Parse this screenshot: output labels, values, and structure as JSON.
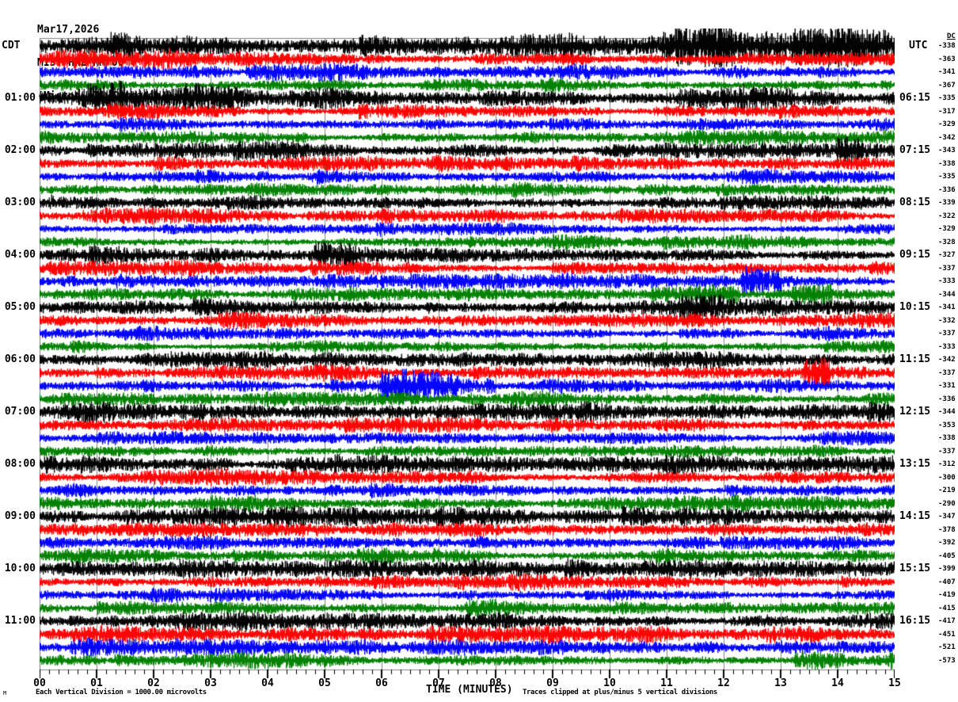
{
  "header": {
    "date": "Mar17,2026",
    "station": "MIST HHZ NM 00",
    "location": "(Miston, TN Cascadia)"
  },
  "axes": {
    "left_label": "CDT",
    "right_label": "UTC",
    "dc_label": "DC",
    "x_title": "TIME (MINUTES)"
  },
  "footer": {
    "left_note": "Each Vertical Division = 1000.00 microvolts",
    "right_note": "Traces clipped at plus/minus 5 vertical divisions",
    "watermark": "M"
  },
  "colors": {
    "black_trace": "#000000",
    "red_trace": "#ff0000",
    "blue_trace": "#0000ff",
    "green_trace": "#008000",
    "grid": "#808080",
    "tick": "#000000"
  },
  "chart_data": {
    "type": "line",
    "subtype": "helicorder-seismogram",
    "title": "MIST HHZ NM 00 (Miston, TN Cascadia) Mar17,2026",
    "x_axis": {
      "label": "TIME (MINUTES)",
      "min": 0,
      "max": 15,
      "tick_labels": [
        "00",
        "01",
        "02",
        "03",
        "04",
        "05",
        "06",
        "07",
        "08",
        "09",
        "10",
        "11",
        "12",
        "13",
        "14",
        "15"
      ],
      "minor_ticks_per_minute": 6
    },
    "row_duration_minutes": 15,
    "rows_per_hour": 4,
    "grid": "vertical gridlines at each minute",
    "note": "waveform is continuous microseismic noise; per-sample values not resolvable from image - rows listed with DC offset (microvolts), trace color, relative noise amplitude and visible event bursts (start/end minute, gain)",
    "rows": [
      {
        "cdt": "",
        "utc": "",
        "dc": -338,
        "color": "#000000",
        "amp": 6.2,
        "events": [
          {
            "s": 10.9,
            "e": 12.2,
            "g": 1.5
          },
          {
            "s": 13.2,
            "e": 14.9,
            "g": 1.35
          }
        ]
      },
      {
        "cdt": "",
        "utc": "",
        "dc": -363,
        "color": "#ff0000",
        "amp": 4.4,
        "events": []
      },
      {
        "cdt": "",
        "utc": "",
        "dc": -341,
        "color": "#0000ff",
        "amp": 3.6,
        "events": []
      },
      {
        "cdt": "",
        "utc": "",
        "dc": -367,
        "color": "#008000",
        "amp": 3.4,
        "events": []
      },
      {
        "cdt": "01:00",
        "utc": "06:15",
        "dc": -335,
        "color": "#000000",
        "amp": 5.2,
        "events": [
          {
            "s": 0.3,
            "e": 1.5,
            "g": 1.5
          },
          {
            "s": 2.5,
            "e": 3.7,
            "g": 1.45
          },
          {
            "s": 11.2,
            "e": 12.4,
            "g": 1.5
          }
        ]
      },
      {
        "cdt": "",
        "utc": "",
        "dc": -317,
        "color": "#ff0000",
        "amp": 3.4,
        "events": []
      },
      {
        "cdt": "",
        "utc": "",
        "dc": -329,
        "color": "#0000ff",
        "amp": 3.0,
        "events": []
      },
      {
        "cdt": "",
        "utc": "",
        "dc": -342,
        "color": "#008000",
        "amp": 3.2,
        "events": []
      },
      {
        "cdt": "02:00",
        "utc": "07:15",
        "dc": -343,
        "color": "#000000",
        "amp": 4.1,
        "events": [
          {
            "s": 13.1,
            "e": 14.4,
            "g": 1.4
          }
        ]
      },
      {
        "cdt": "",
        "utc": "",
        "dc": -338,
        "color": "#ff0000",
        "amp": 3.3,
        "events": []
      },
      {
        "cdt": "",
        "utc": "",
        "dc": -335,
        "color": "#0000ff",
        "amp": 3.0,
        "events": []
      },
      {
        "cdt": "",
        "utc": "",
        "dc": -336,
        "color": "#008000",
        "amp": 3.1,
        "events": []
      },
      {
        "cdt": "03:00",
        "utc": "08:15",
        "dc": -339,
        "color": "#000000",
        "amp": 3.9,
        "events": []
      },
      {
        "cdt": "",
        "utc": "",
        "dc": -322,
        "color": "#ff0000",
        "amp": 3.3,
        "events": []
      },
      {
        "cdt": "",
        "utc": "",
        "dc": -329,
        "color": "#0000ff",
        "amp": 2.9,
        "events": []
      },
      {
        "cdt": "",
        "utc": "",
        "dc": -328,
        "color": "#008000",
        "amp": 3.1,
        "events": []
      },
      {
        "cdt": "04:00",
        "utc": "09:15",
        "dc": -327,
        "color": "#000000",
        "amp": 3.9,
        "events": [
          {
            "s": 4.7,
            "e": 5.5,
            "g": 1.4
          }
        ]
      },
      {
        "cdt": "",
        "utc": "",
        "dc": -337,
        "color": "#ff0000",
        "amp": 3.3,
        "events": []
      },
      {
        "cdt": "",
        "utc": "",
        "dc": -333,
        "color": "#0000ff",
        "amp": 3.1,
        "events": [
          {
            "s": 12.3,
            "e": 13.0,
            "g": 2.0
          }
        ]
      },
      {
        "cdt": "",
        "utc": "",
        "dc": -344,
        "color": "#008000",
        "amp": 3.2,
        "events": [
          {
            "s": 10.7,
            "e": 12.3,
            "g": 2.1
          },
          {
            "s": 13.2,
            "e": 13.9,
            "g": 2.3
          }
        ]
      },
      {
        "cdt": "05:00",
        "utc": "10:15",
        "dc": -341,
        "color": "#000000",
        "amp": 4.0,
        "events": [
          {
            "s": 11.2,
            "e": 12.0,
            "g": 1.6
          }
        ]
      },
      {
        "cdt": "",
        "utc": "",
        "dc": -332,
        "color": "#ff0000",
        "amp": 3.4,
        "events": []
      },
      {
        "cdt": "",
        "utc": "",
        "dc": -337,
        "color": "#0000ff",
        "amp": 2.9,
        "events": []
      },
      {
        "cdt": "",
        "utc": "",
        "dc": -333,
        "color": "#008000",
        "amp": 3.1,
        "events": []
      },
      {
        "cdt": "06:00",
        "utc": "11:15",
        "dc": -342,
        "color": "#000000",
        "amp": 3.9,
        "events": []
      },
      {
        "cdt": "",
        "utc": "",
        "dc": -337,
        "color": "#ff0000",
        "amp": 3.4,
        "events": [
          {
            "s": 13.4,
            "e": 13.85,
            "g": 2.5
          }
        ]
      },
      {
        "cdt": "",
        "utc": "",
        "dc": -331,
        "color": "#0000ff",
        "amp": 3.1,
        "events": [
          {
            "s": 6.0,
            "e": 7.35,
            "g": 2.9
          },
          {
            "s": 7.35,
            "e": 8.0,
            "g": 1.9
          }
        ]
      },
      {
        "cdt": "",
        "utc": "",
        "dc": -336,
        "color": "#008000",
        "amp": 3.2,
        "events": []
      },
      {
        "cdt": "07:00",
        "utc": "12:15",
        "dc": -344,
        "color": "#000000",
        "amp": 4.0,
        "events": []
      },
      {
        "cdt": "",
        "utc": "",
        "dc": -353,
        "color": "#ff0000",
        "amp": 3.3,
        "events": []
      },
      {
        "cdt": "",
        "utc": "",
        "dc": -338,
        "color": "#0000ff",
        "amp": 2.9,
        "events": []
      },
      {
        "cdt": "",
        "utc": "",
        "dc": -337,
        "color": "#008000",
        "amp": 3.2,
        "events": []
      },
      {
        "cdt": "08:00",
        "utc": "13:15",
        "dc": -312,
        "color": "#000000",
        "amp": 3.9,
        "events": []
      },
      {
        "cdt": "",
        "utc": "",
        "dc": -300,
        "color": "#ff0000",
        "amp": 3.4,
        "events": []
      },
      {
        "cdt": "",
        "utc": "",
        "dc": -219,
        "color": "#0000ff",
        "amp": 3.0,
        "events": []
      },
      {
        "cdt": "",
        "utc": "",
        "dc": -290,
        "color": "#008000",
        "amp": 3.3,
        "events": []
      },
      {
        "cdt": "09:00",
        "utc": "14:15",
        "dc": -347,
        "color": "#000000",
        "amp": 4.1,
        "events": [
          {
            "s": 1.0,
            "e": 2.2,
            "g": 1.5
          }
        ]
      },
      {
        "cdt": "",
        "utc": "",
        "dc": -378,
        "color": "#ff0000",
        "amp": 3.4,
        "events": []
      },
      {
        "cdt": "",
        "utc": "",
        "dc": -392,
        "color": "#0000ff",
        "amp": 3.1,
        "events": []
      },
      {
        "cdt": "",
        "utc": "",
        "dc": -405,
        "color": "#008000",
        "amp": 3.4,
        "events": []
      },
      {
        "cdt": "10:00",
        "utc": "15:15",
        "dc": -399,
        "color": "#000000",
        "amp": 4.0,
        "events": []
      },
      {
        "cdt": "",
        "utc": "",
        "dc": -407,
        "color": "#ff0000",
        "amp": 3.4,
        "events": []
      },
      {
        "cdt": "",
        "utc": "",
        "dc": -419,
        "color": "#0000ff",
        "amp": 3.1,
        "events": []
      },
      {
        "cdt": "",
        "utc": "",
        "dc": -415,
        "color": "#008000",
        "amp": 3.5,
        "events": []
      },
      {
        "cdt": "11:00",
        "utc": "16:15",
        "dc": -417,
        "color": "#000000",
        "amp": 3.9,
        "events": []
      },
      {
        "cdt": "",
        "utc": "",
        "dc": -451,
        "color": "#ff0000",
        "amp": 3.6,
        "events": []
      },
      {
        "cdt": "",
        "utc": "",
        "dc": -521,
        "color": "#0000ff",
        "amp": 3.8,
        "events": []
      },
      {
        "cdt": "",
        "utc": "",
        "dc": -573,
        "color": "#008000",
        "amp": 3.6,
        "events": []
      }
    ]
  }
}
